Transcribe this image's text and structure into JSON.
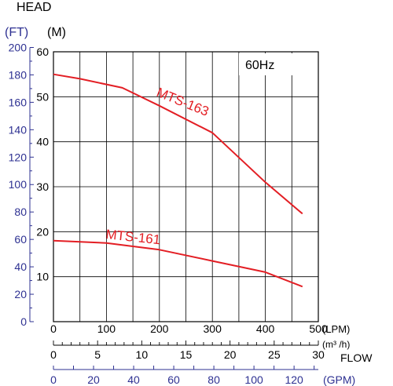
{
  "chart_data": {
    "type": "line",
    "head_title": "HEAD",
    "ft_unit": "(FT)",
    "m_unit": "(M)",
    "frequency_label": "60Hz",
    "flow_title": "FLOW",
    "x_lpm": {
      "unit": "(LPM)",
      "range": [
        0,
        500
      ],
      "ticks": [
        "0",
        "100",
        "200",
        "300",
        "400",
        "500"
      ]
    },
    "x_m3h": {
      "unit": "(m³ /h)",
      "range": [
        0,
        30
      ],
      "ticks": [
        "0",
        "5",
        "10",
        "15",
        "20",
        "25",
        "30"
      ]
    },
    "x_gpm": {
      "unit": "(GPM)",
      "range": [
        0,
        132.1
      ],
      "ticks": [
        "0",
        "20",
        "40",
        "60",
        "80",
        "100",
        "120"
      ]
    },
    "y_m": {
      "range": [
        0,
        60
      ],
      "ticks": [
        "10",
        "20",
        "30",
        "40",
        "50",
        "60"
      ]
    },
    "y_ft": {
      "range": [
        0,
        196.85
      ],
      "ticks": [
        "0",
        "20",
        "40",
        "60",
        "80",
        "100",
        "120",
        "140",
        "160",
        "180",
        "200"
      ]
    },
    "grid": true,
    "series": [
      {
        "name": "MTS-163",
        "color": "#e31e24",
        "x": [
          0,
          50,
          130,
          200,
          300,
          400,
          470
        ],
        "y": [
          55,
          54,
          52,
          48,
          42,
          31,
          24
        ]
      },
      {
        "name": "MTS-161",
        "color": "#e31e24",
        "x": [
          0,
          100,
          200,
          300,
          400,
          470
        ],
        "y": [
          18,
          17.5,
          16,
          13.5,
          11,
          7.8
        ]
      }
    ],
    "colors": {
      "curve": "#e31e24",
      "ft_axis": "#2e3192",
      "axis": "#000000"
    }
  }
}
